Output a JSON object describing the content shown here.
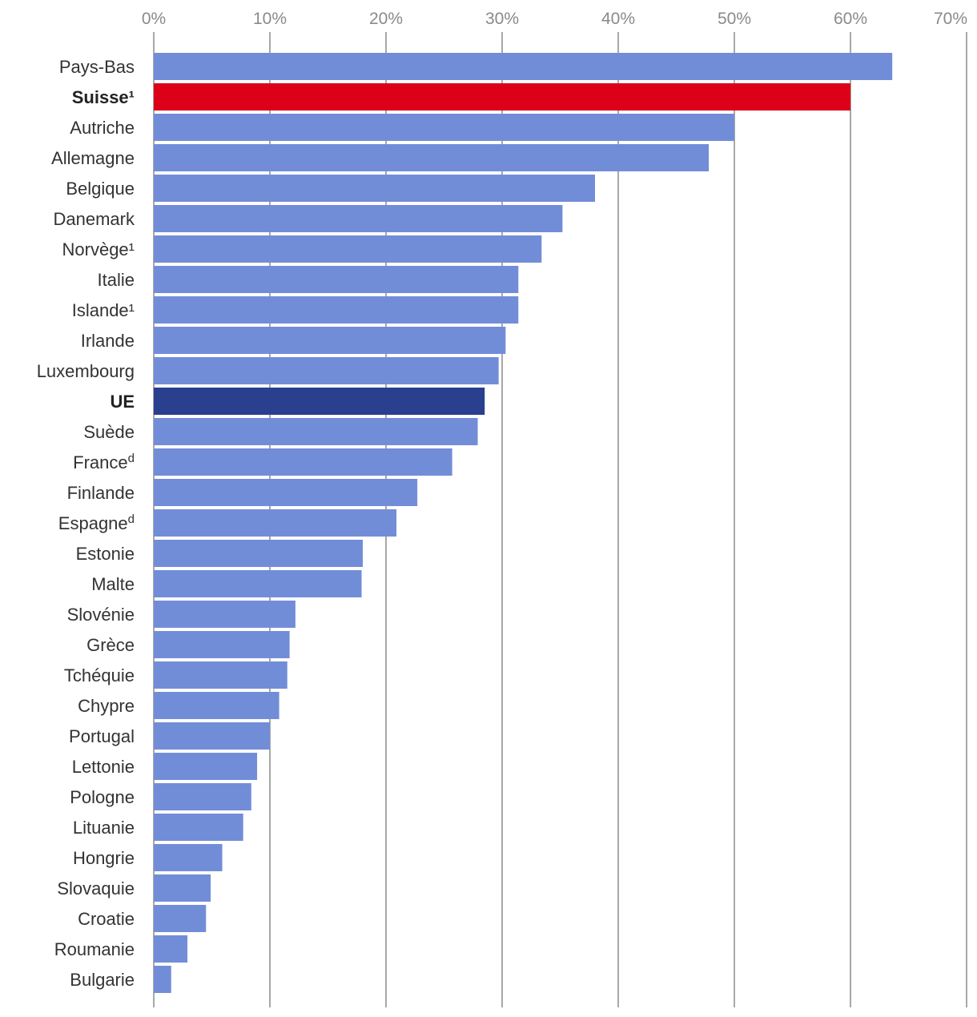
{
  "chart_data": {
    "type": "bar",
    "orientation": "horizontal",
    "title": "",
    "xlabel": "",
    "ylabel": "",
    "xlim": [
      0,
      70
    ],
    "x_ticks": [
      0,
      10,
      20,
      30,
      40,
      50,
      60,
      70
    ],
    "tick_suffix": "%",
    "grid": true,
    "colors": {
      "default": "#728dd8",
      "highlight_red": "#dc0018",
      "highlight_navy": "#2a3f8d"
    },
    "categories": [
      {
        "label": "Pays-Bas",
        "sup": "",
        "value": 63.6
      },
      {
        "label": "Suisse",
        "sup": "¹",
        "value": 60.0,
        "highlight": "red",
        "bold": true
      },
      {
        "label": "Autriche",
        "sup": "",
        "value": 50.0
      },
      {
        "label": "Allemagne",
        "sup": "",
        "value": 47.8
      },
      {
        "label": "Belgique",
        "sup": "",
        "value": 38.0
      },
      {
        "label": "Danemark",
        "sup": "",
        "value": 35.2
      },
      {
        "label": "Norvège",
        "sup": "¹",
        "value": 33.4
      },
      {
        "label": "Italie",
        "sup": "",
        "value": 31.4
      },
      {
        "label": "Islande",
        "sup": "¹",
        "value": 31.4
      },
      {
        "label": "Irlande",
        "sup": "",
        "value": 30.3
      },
      {
        "label": "Luxembourg",
        "sup": "",
        "value": 29.7
      },
      {
        "label": "UE",
        "sup": "",
        "value": 28.5,
        "highlight": "navy",
        "bold": true
      },
      {
        "label": "Suède",
        "sup": "",
        "value": 27.9
      },
      {
        "label": "France",
        "sup": "d",
        "value": 25.7
      },
      {
        "label": "Finlande",
        "sup": "",
        "value": 22.7
      },
      {
        "label": "Espagne",
        "sup": "d",
        "value": 20.9
      },
      {
        "label": "Estonie",
        "sup": "",
        "value": 18.0
      },
      {
        "label": "Malte",
        "sup": "",
        "value": 17.9
      },
      {
        "label": "Slovénie",
        "sup": "",
        "value": 12.2
      },
      {
        "label": "Grèce",
        "sup": "",
        "value": 11.7
      },
      {
        "label": "Tchéquie",
        "sup": "",
        "value": 11.5
      },
      {
        "label": "Chypre",
        "sup": "",
        "value": 10.8
      },
      {
        "label": "Portugal",
        "sup": "",
        "value": 10.0
      },
      {
        "label": "Lettonie",
        "sup": "",
        "value": 8.9
      },
      {
        "label": "Pologne",
        "sup": "",
        "value": 8.4
      },
      {
        "label": "Lituanie",
        "sup": "",
        "value": 7.7
      },
      {
        "label": "Hongrie",
        "sup": "",
        "value": 5.9
      },
      {
        "label": "Slovaquie",
        "sup": "",
        "value": 4.9
      },
      {
        "label": "Croatie",
        "sup": "",
        "value": 4.5
      },
      {
        "label": "Roumanie",
        "sup": "",
        "value": 2.9
      },
      {
        "label": "Bulgarie",
        "sup": "",
        "value": 1.5
      }
    ]
  }
}
